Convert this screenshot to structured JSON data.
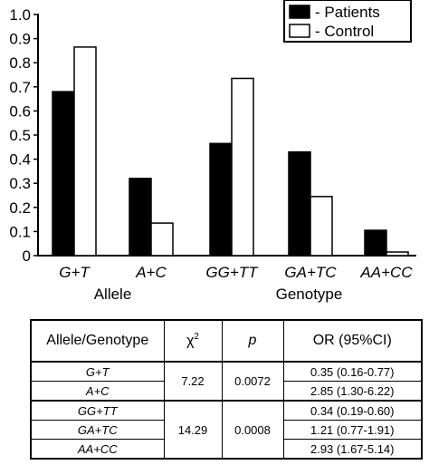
{
  "chart_data": {
    "type": "bar",
    "groups": [
      {
        "label": "Allele",
        "categories": [
          "G+T",
          "A+C"
        ]
      },
      {
        "label": "Genotype",
        "categories": [
          "GG+TT",
          "GA+TC",
          "AA+CC"
        ]
      }
    ],
    "categories": [
      "G+T",
      "A+C",
      "GG+TT",
      "GA+TC",
      "AA+CC"
    ],
    "series": [
      {
        "name": "- Patients",
        "color": "#000000",
        "values": [
          0.68,
          0.32,
          0.465,
          0.43,
          0.105
        ]
      },
      {
        "name": "- Control",
        "color": "#ffffff",
        "values": [
          0.865,
          0.135,
          0.735,
          0.245,
          0.015
        ]
      }
    ],
    "ylim": [
      0,
      1.0
    ],
    "yticks": [
      "0",
      "0.1",
      "0.2",
      "0.3",
      "0.4",
      "0.5",
      "0.6",
      "0.7",
      "0.8",
      "0.9",
      "1.0"
    ],
    "legend_position": "top-right",
    "grid": false
  },
  "table": {
    "headers": {
      "col1": "Allele/Genotype",
      "chi_base": "χ",
      "chi_sup": "2",
      "p": "p",
      "or": "OR (95%CI)"
    },
    "rows": [
      {
        "label": "G+T",
        "or": "0.35 (0.16-0.77)"
      },
      {
        "label": "A+C",
        "or": "2.85 (1.30-6.22)"
      },
      {
        "label": "GG+TT",
        "or": "0.34 (0.19-0.60)"
      },
      {
        "label": "GA+TC",
        "or": "1.21 (0.77-1.91)"
      },
      {
        "label": "AA+CC",
        "or": "2.93 (1.67-5.14)"
      }
    ],
    "allele_chi": "7.22",
    "allele_p": "0.0072",
    "genotype_chi": "14.29",
    "genotype_p": "0.0008"
  }
}
